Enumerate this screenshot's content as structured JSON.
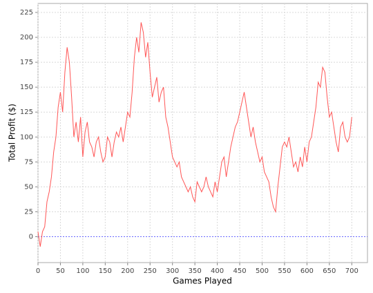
{
  "chart_data": {
    "type": "line",
    "x_label": "Games Played",
    "y_label": "Total Profit ($)",
    "x": [
      0,
      5,
      10,
      15,
      20,
      25,
      30,
      35,
      40,
      45,
      50,
      55,
      60,
      65,
      70,
      75,
      80,
      85,
      90,
      95,
      100,
      105,
      110,
      115,
      120,
      125,
      130,
      135,
      140,
      145,
      150,
      155,
      160,
      165,
      170,
      175,
      180,
      185,
      190,
      195,
      200,
      205,
      210,
      215,
      220,
      225,
      230,
      235,
      240,
      245,
      250,
      255,
      260,
      265,
      270,
      275,
      280,
      285,
      290,
      295,
      300,
      305,
      310,
      315,
      320,
      325,
      330,
      335,
      340,
      345,
      350,
      355,
      360,
      365,
      370,
      375,
      380,
      385,
      390,
      395,
      400,
      405,
      410,
      415,
      420,
      425,
      430,
      435,
      440,
      445,
      450,
      455,
      460,
      465,
      470,
      475,
      480,
      485,
      490,
      495,
      500,
      505,
      510,
      515,
      520,
      525,
      530,
      535,
      540,
      545,
      550,
      555,
      560,
      565,
      570,
      575,
      580,
      585,
      590,
      595,
      600,
      605,
      610,
      615,
      620,
      625,
      630,
      635,
      640,
      645,
      650,
      655,
      660,
      665,
      670,
      675,
      680,
      685,
      690,
      695,
      700
    ],
    "series": [
      {
        "color": "#ff5555",
        "values": [
          5,
          -10,
          5,
          10,
          35,
          45,
          60,
          85,
          100,
          130,
          145,
          125,
          165,
          190,
          175,
          140,
          100,
          115,
          95,
          120,
          80,
          105,
          115,
          95,
          90,
          80,
          95,
          100,
          85,
          75,
          80,
          100,
          95,
          80,
          95,
          105,
          100,
          110,
          95,
          110,
          125,
          120,
          145,
          180,
          200,
          185,
          215,
          205,
          180,
          195,
          165,
          140,
          150,
          160,
          135,
          145,
          150,
          120,
          110,
          95,
          80,
          75,
          70,
          75,
          60,
          55,
          50,
          45,
          50,
          40,
          35,
          55,
          50,
          45,
          50,
          60,
          50,
          45,
          40,
          55,
          45,
          60,
          75,
          80,
          60,
          75,
          90,
          100,
          110,
          115,
          125,
          135,
          145,
          130,
          115,
          100,
          110,
          95,
          85,
          75,
          80,
          65,
          60,
          55,
          40,
          30,
          25,
          50,
          70,
          90,
          95,
          90,
          100,
          85,
          70,
          75,
          65,
          80,
          70,
          90,
          75,
          95,
          100,
          115,
          130,
          155,
          150,
          170,
          165,
          140,
          120,
          125,
          110,
          95,
          85,
          110,
          115,
          100,
          95,
          100,
          120
        ]
      }
    ],
    "reference_line": {
      "value": 0,
      "color": "#6666ff"
    },
    "xlim": [
      0,
      735
    ],
    "ylim": [
      -26,
      234
    ],
    "xticks": [
      0,
      50,
      100,
      150,
      200,
      250,
      300,
      350,
      400,
      450,
      500,
      550,
      600,
      650,
      700
    ],
    "yticks": [
      0,
      25,
      50,
      75,
      100,
      125,
      150,
      175,
      200,
      225
    ],
    "grid": true
  }
}
